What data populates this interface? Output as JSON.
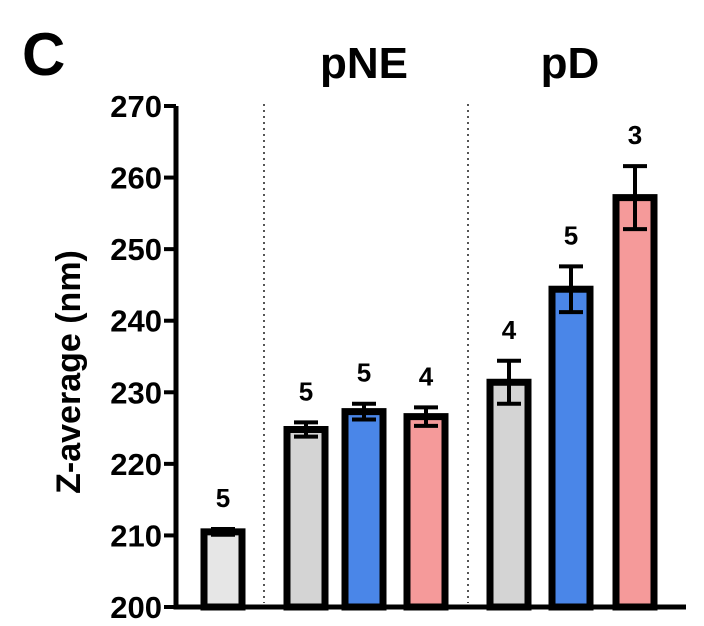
{
  "chart_data": {
    "type": "bar",
    "panel_label": "C",
    "ylabel": "Z-average  (nm)",
    "ylim": [
      200,
      270
    ],
    "yticks": [
      200,
      210,
      220,
      230,
      240,
      250,
      260,
      270
    ],
    "groups": [
      {
        "label": "",
        "bars": [
          0
        ]
      },
      {
        "label": "pNE",
        "bars": [
          1,
          2,
          3
        ]
      },
      {
        "label": "pD",
        "bars": [
          4,
          5,
          6
        ]
      }
    ],
    "bars": [
      {
        "value": 210.5,
        "error": 0.4,
        "n": "5",
        "color": "#e6e6e6"
      },
      {
        "value": 224.8,
        "error": 1.0,
        "n": "5",
        "color": "#d4d4d4"
      },
      {
        "value": 227.3,
        "error": 1.1,
        "n": "5",
        "color": "#4a86e8"
      },
      {
        "value": 226.6,
        "error": 1.3,
        "n": "4",
        "color": "#f59a9a"
      },
      {
        "value": 231.4,
        "error": 3.0,
        "n": "4",
        "color": "#d4d4d4"
      },
      {
        "value": 244.4,
        "error": 3.2,
        "n": "5",
        "color": "#4a86e8"
      },
      {
        "value": 257.2,
        "error": 4.4,
        "n": "3",
        "color": "#f59a9a"
      }
    ],
    "separators": "dotted vertical lines between groups",
    "grid": false
  }
}
